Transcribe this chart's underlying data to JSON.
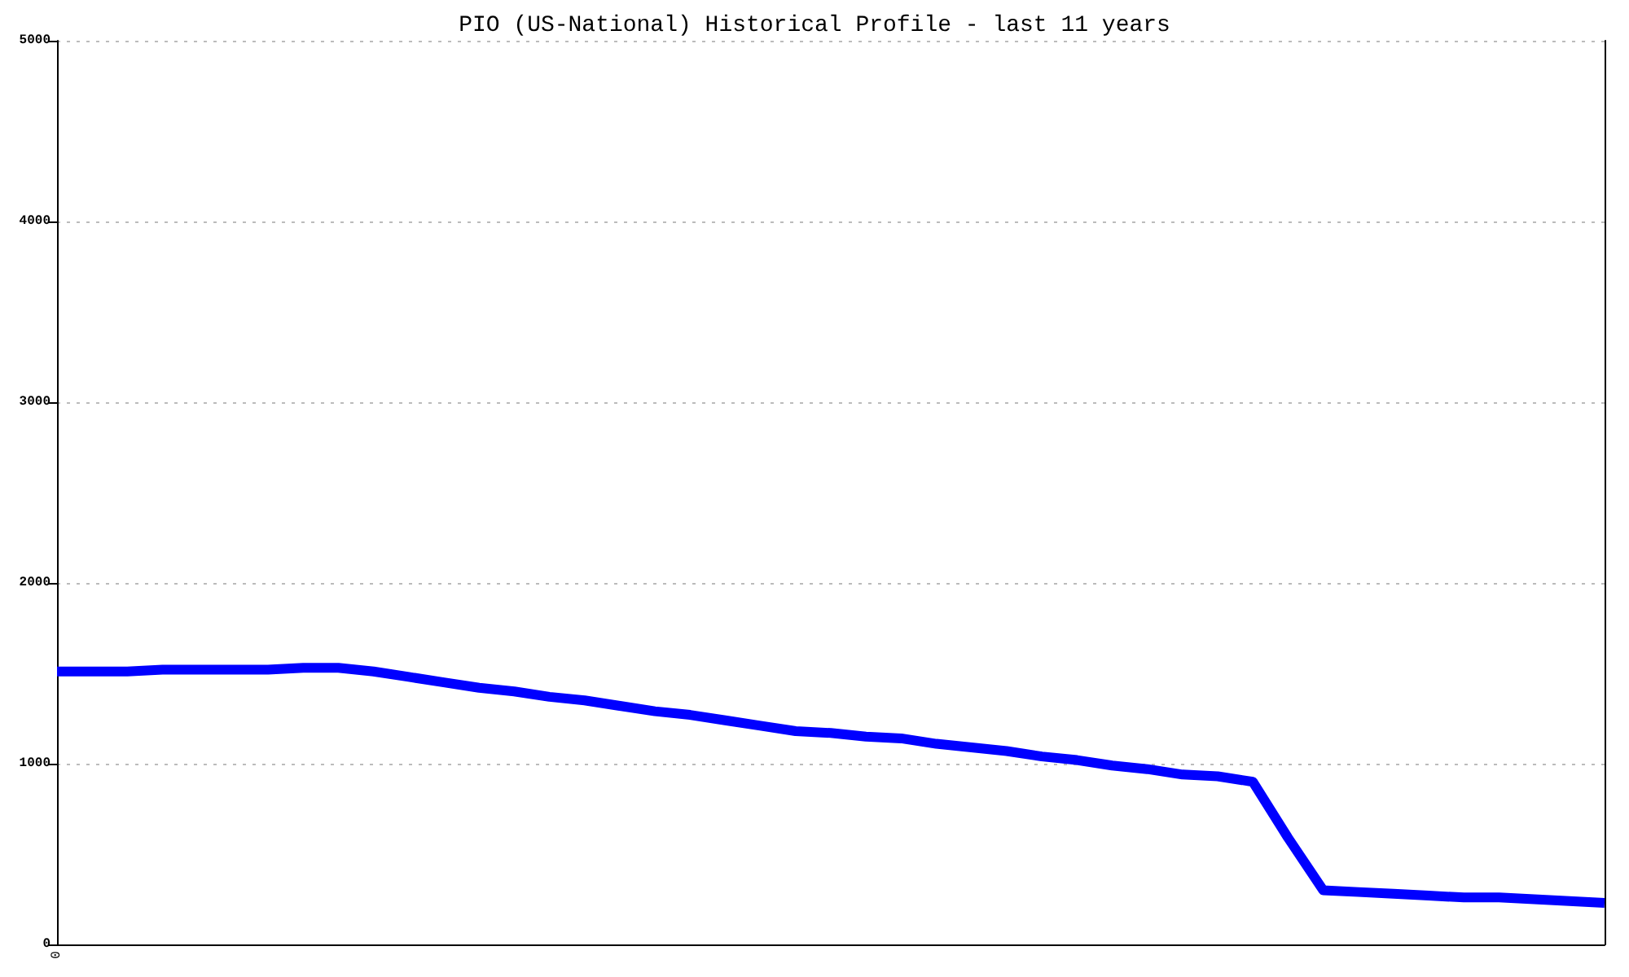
{
  "chart_data": {
    "type": "line",
    "title": "PIO (US-National) Historical Profile - last 11 years",
    "categories": [
      "0",
      null,
      null,
      null,
      null,
      null,
      null,
      null,
      null,
      null,
      null,
      null,
      null,
      null,
      null,
      null,
      null,
      null,
      null,
      null,
      null,
      null,
      null,
      null,
      null,
      null,
      null,
      null,
      null,
      null,
      null,
      null,
      null,
      null,
      null,
      null,
      null,
      null,
      null,
      null,
      null,
      null,
      null,
      null,
      null
    ],
    "series": [
      {
        "color": "#0000ff",
        "values": [
          1510,
          1510,
          1510,
          1520,
          1520,
          1520,
          1520,
          1530,
          1530,
          1510,
          1480,
          1450,
          1420,
          1400,
          1370,
          1350,
          1320,
          1290,
          1270,
          1240,
          1210,
          1180,
          1170,
          1150,
          1140,
          1110,
          1090,
          1070,
          1040,
          1020,
          990,
          970,
          940,
          930,
          900,
          590,
          300,
          290,
          280,
          270,
          260,
          260,
          250,
          240,
          230
        ]
      }
    ],
    "ylim": [
      0,
      5000
    ],
    "yticks": [
      0,
      1000,
      2000,
      3000,
      4000,
      5000
    ],
    "grid": "y",
    "marker": "none",
    "line_style": "solid"
  }
}
